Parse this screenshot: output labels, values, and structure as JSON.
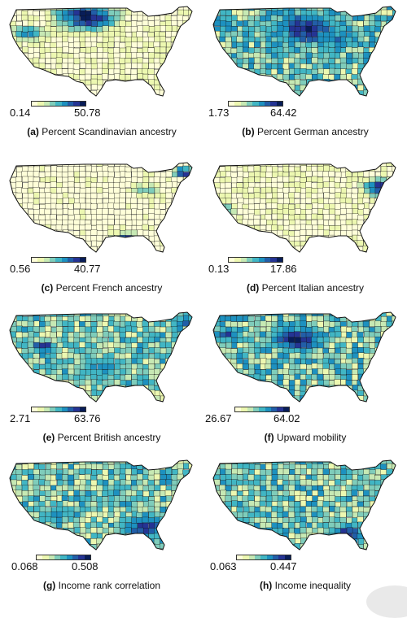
{
  "palette": [
    "#ffffd9",
    "#edf8b1",
    "#c7e9b4",
    "#7fcdbb",
    "#41b6c4",
    "#1d91c0",
    "#225ea8",
    "#253494",
    "#081d58"
  ],
  "panels": [
    {
      "id": "a",
      "letter": "(a)",
      "title": "Percent Scandinavian ancestry",
      "min": "0.14",
      "max": "50.78",
      "hot": [
        [
          0.42,
          0.12,
          0.22,
          8
        ],
        [
          0.12,
          0.3,
          0.12,
          5
        ]
      ],
      "base": 0.1,
      "noise": 0.12
    },
    {
      "id": "b",
      "letter": "(b)",
      "title": "Percent German ancestry",
      "min": "1.73",
      "max": "64.42",
      "hot": [
        [
          0.5,
          0.25,
          0.3,
          7
        ],
        [
          0.65,
          0.35,
          0.25,
          5
        ]
      ],
      "base": 0.42,
      "noise": 0.25
    },
    {
      "id": "c",
      "letter": "(c)",
      "title": "Percent French ancestry",
      "min": "0.56",
      "max": "40.77",
      "hot": [
        [
          0.92,
          0.12,
          0.08,
          8
        ],
        [
          0.62,
          0.82,
          0.1,
          7
        ],
        [
          0.72,
          0.3,
          0.1,
          3
        ]
      ],
      "base": 0.05,
      "noise": 0.08
    },
    {
      "id": "d",
      "letter": "(d)",
      "title": "Percent Italian ancestry",
      "min": "0.13",
      "max": "17.86",
      "hot": [
        [
          0.88,
          0.28,
          0.12,
          8
        ],
        [
          0.06,
          0.5,
          0.1,
          4
        ]
      ],
      "base": 0.1,
      "noise": 0.12
    },
    {
      "id": "e",
      "letter": "(e)",
      "title": "Percent British ancestry",
      "min": "2.71",
      "max": "63.76",
      "hot": [
        [
          0.2,
          0.38,
          0.1,
          8
        ],
        [
          0.93,
          0.12,
          0.08,
          7
        ],
        [
          0.5,
          0.6,
          0.25,
          5
        ]
      ],
      "base": 0.38,
      "noise": 0.2
    },
    {
      "id": "f",
      "letter": "(f)",
      "title": "Upward mobility",
      "min": "26.67",
      "max": "64.02",
      "hot": [
        [
          0.45,
          0.3,
          0.22,
          8
        ],
        [
          0.1,
          0.25,
          0.15,
          6
        ]
      ],
      "base": 0.4,
      "noise": 0.25
    },
    {
      "id": "g",
      "letter": "(g)",
      "title": "Income rank correlation",
      "min": "0.068",
      "max": "0.508",
      "hot": [
        [
          0.72,
          0.72,
          0.2,
          7
        ],
        [
          0.25,
          0.6,
          0.15,
          5
        ]
      ],
      "base": 0.38,
      "noise": 0.22
    },
    {
      "id": "h",
      "letter": "(h)",
      "title": "Income inequality",
      "min": "0.063",
      "max": "0.447",
      "hot": [
        [
          0.7,
          0.78,
          0.18,
          7
        ],
        [
          0.15,
          0.7,
          0.15,
          6
        ],
        [
          0.9,
          0.35,
          0.1,
          5
        ]
      ],
      "base": 0.4,
      "noise": 0.22
    }
  ]
}
